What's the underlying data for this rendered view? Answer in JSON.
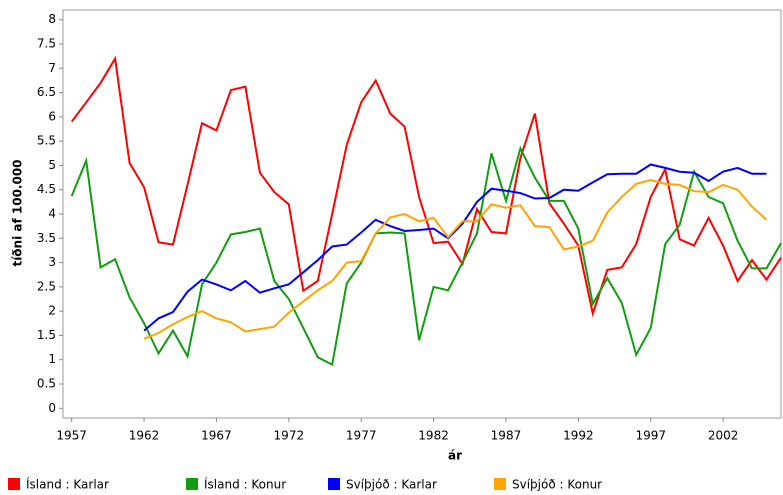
{
  "chart_data": {
    "type": "line",
    "x_label": "ár",
    "y_label": "tíðni af 100.000",
    "x": [
      1957,
      1958,
      1959,
      1960,
      1961,
      1962,
      1963,
      1964,
      1965,
      1966,
      1967,
      1968,
      1969,
      1970,
      1971,
      1972,
      1973,
      1974,
      1975,
      1976,
      1977,
      1978,
      1979,
      1980,
      1981,
      1982,
      1983,
      1984,
      1985,
      1986,
      1987,
      1988,
      1989,
      1990,
      1991,
      1992,
      1993,
      1994,
      1995,
      1996,
      1997,
      1998,
      1999,
      2000,
      2001,
      2002,
      2003,
      2004,
      2005,
      2006
    ],
    "xlim": [
      1956.4,
      2006
    ],
    "xticks": [
      1957,
      1962,
      1967,
      1972,
      1977,
      1982,
      1987,
      1992,
      1997,
      2002
    ],
    "ylim": [
      -0.2,
      8.2
    ],
    "yticks": [
      0,
      0.5,
      1,
      1.5,
      2,
      2.5,
      3,
      3.5,
      4,
      4.5,
      5,
      5.5,
      6,
      6.5,
      7,
      7.5,
      8
    ],
    "series": [
      {
        "name": "Ísland : Karlar",
        "color": "#ff0000",
        "values": [
          5.9,
          6.3,
          6.7,
          7.2,
          5.05,
          4.55,
          3.42,
          3.37,
          4.6,
          5.87,
          5.72,
          6.55,
          6.62,
          4.85,
          4.45,
          4.2,
          2.42,
          2.62,
          4.0,
          5.42,
          6.3,
          6.75,
          6.07,
          5.8,
          4.35,
          3.4,
          3.43,
          2.97,
          4.1,
          3.63,
          3.6,
          5.15,
          6.07,
          4.22,
          3.8,
          3.35,
          1.95,
          2.85,
          2.9,
          3.38,
          4.35,
          4.92,
          3.48,
          3.35,
          3.92,
          3.35,
          2.62,
          3.05,
          2.65,
          3.1
        ]
      },
      {
        "name": "Ísland : Konur",
        "color": "#109e10",
        "values": [
          4.37,
          5.1,
          2.9,
          3.07,
          2.28,
          1.75,
          1.13,
          1.6,
          1.07,
          2.55,
          3.0,
          3.58,
          3.63,
          3.7,
          2.62,
          2.25,
          1.65,
          1.05,
          0.9,
          2.57,
          3.0,
          3.6,
          3.62,
          3.6,
          1.4,
          2.5,
          2.43,
          3.0,
          3.6,
          5.25,
          4.27,
          5.35,
          4.75,
          4.27,
          4.27,
          3.7,
          2.15,
          2.68,
          2.17,
          1.1,
          1.65,
          3.38,
          3.78,
          4.87,
          4.35,
          4.22,
          3.45,
          2.88,
          2.88,
          3.4
        ]
      },
      {
        "name": "Svíþjóð : Karlar",
        "color": "#0000ff",
        "values": [
          null,
          null,
          null,
          null,
          null,
          1.6,
          1.85,
          1.98,
          2.4,
          2.65,
          2.55,
          2.43,
          2.62,
          2.38,
          2.47,
          2.55,
          2.8,
          3.05,
          3.33,
          3.37,
          3.62,
          3.88,
          3.75,
          3.65,
          3.67,
          3.7,
          3.5,
          3.8,
          4.25,
          4.52,
          4.48,
          4.43,
          4.32,
          4.33,
          4.5,
          4.48,
          4.65,
          4.82,
          4.83,
          4.83,
          5.02,
          4.95,
          4.87,
          4.85,
          4.68,
          4.87,
          4.95,
          4.83,
          4.83,
          null
        ]
      },
      {
        "name": "Svíþjóð : Konur",
        "color": "#ffa500",
        "values": [
          null,
          null,
          null,
          null,
          null,
          1.43,
          1.55,
          1.73,
          1.88,
          2.0,
          1.85,
          1.77,
          1.58,
          1.63,
          1.68,
          1.97,
          2.2,
          2.43,
          2.62,
          3.0,
          3.03,
          3.6,
          3.93,
          4.0,
          3.85,
          3.92,
          3.52,
          3.85,
          3.85,
          4.2,
          4.13,
          4.18,
          3.75,
          3.73,
          3.27,
          3.33,
          3.45,
          4.03,
          4.35,
          4.62,
          4.7,
          4.62,
          4.6,
          4.47,
          4.45,
          4.6,
          4.5,
          4.15,
          3.88,
          null
        ]
      }
    ]
  }
}
